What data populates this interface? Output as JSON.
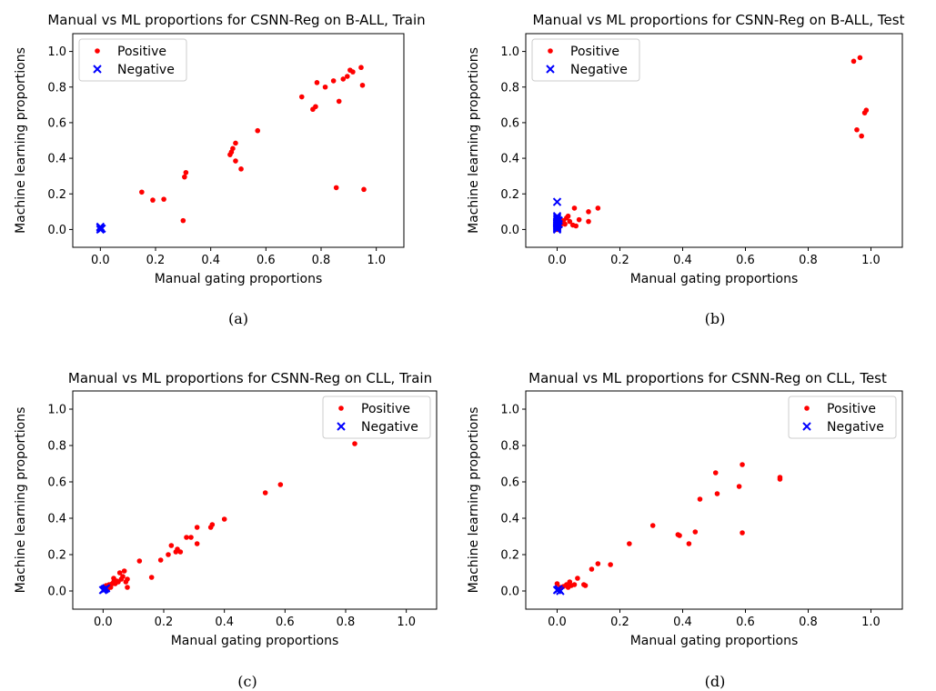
{
  "colors": {
    "positive": "#ff0000",
    "negative": "#0000ff"
  },
  "chart_data": [
    {
      "type": "scatter",
      "title": "Manual vs ML proportions for CSNN-Reg on B-ALL, Train",
      "xlabel": "Manual gating proportions",
      "ylabel": "Machine learning proportions",
      "caption": "(a)",
      "xlim": [
        -0.1,
        1.1
      ],
      "ylim": [
        -0.1,
        1.1
      ],
      "xticks": [
        0.0,
        0.2,
        0.4,
        0.6,
        0.8,
        1.0
      ],
      "yticks": [
        0.0,
        0.2,
        0.4,
        0.6,
        0.8,
        1.0
      ],
      "legend_position": "top-left",
      "series": [
        {
          "name": "Positive",
          "marker": "dot",
          "color": "#ff0000",
          "points": [
            [
              0.15,
              0.21
            ],
            [
              0.19,
              0.165
            ],
            [
              0.23,
              0.17
            ],
            [
              0.3,
              0.05
            ],
            [
              0.305,
              0.295
            ],
            [
              0.31,
              0.32
            ],
            [
              0.47,
              0.42
            ],
            [
              0.475,
              0.435
            ],
            [
              0.48,
              0.455
            ],
            [
              0.49,
              0.385
            ],
            [
              0.49,
              0.485
            ],
            [
              0.51,
              0.34
            ],
            [
              0.57,
              0.555
            ],
            [
              0.73,
              0.745
            ],
            [
              0.77,
              0.675
            ],
            [
              0.78,
              0.69
            ],
            [
              0.785,
              0.825
            ],
            [
              0.815,
              0.8
            ],
            [
              0.845,
              0.835
            ],
            [
              0.855,
              0.235
            ],
            [
              0.865,
              0.72
            ],
            [
              0.88,
              0.845
            ],
            [
              0.895,
              0.86
            ],
            [
              0.905,
              0.895
            ],
            [
              0.915,
              0.885
            ],
            [
              0.945,
              0.91
            ],
            [
              0.95,
              0.81
            ],
            [
              0.955,
              0.225
            ]
          ]
        },
        {
          "name": "Negative",
          "marker": "x",
          "color": "#0000ff",
          "points": [
            [
              0.0,
              0.0
            ],
            [
              0.0,
              0.01
            ],
            [
              0.005,
              0.005
            ],
            [
              0.0,
              0.015
            ]
          ]
        }
      ]
    },
    {
      "type": "scatter",
      "title": "Manual vs ML proportions for CSNN-Reg on B-ALL, Test",
      "xlabel": "Manual gating proportions",
      "ylabel": "Machine learning proportions",
      "caption": "(b)",
      "xlim": [
        -0.1,
        1.1
      ],
      "ylim": [
        -0.1,
        1.1
      ],
      "xticks": [
        0.0,
        0.2,
        0.4,
        0.6,
        0.8,
        1.0
      ],
      "yticks": [
        0.0,
        0.2,
        0.4,
        0.6,
        0.8,
        1.0
      ],
      "legend_position": "top-left",
      "series": [
        {
          "name": "Positive",
          "marker": "dot",
          "color": "#ff0000",
          "points": [
            [
              0.0,
              0.0
            ],
            [
              0.005,
              0.01
            ],
            [
              0.01,
              0.02
            ],
            [
              0.015,
              0.035
            ],
            [
              0.02,
              0.05
            ],
            [
              0.025,
              0.03
            ],
            [
              0.03,
              0.065
            ],
            [
              0.035,
              0.075
            ],
            [
              0.04,
              0.045
            ],
            [
              0.05,
              0.025
            ],
            [
              0.055,
              0.12
            ],
            [
              0.06,
              0.02
            ],
            [
              0.07,
              0.055
            ],
            [
              0.1,
              0.045
            ],
            [
              0.1,
              0.1
            ],
            [
              0.13,
              0.12
            ],
            [
              0.945,
              0.945
            ],
            [
              0.955,
              0.56
            ],
            [
              0.965,
              0.965
            ],
            [
              0.97,
              0.525
            ],
            [
              0.98,
              0.655
            ],
            [
              0.985,
              0.67
            ]
          ]
        },
        {
          "name": "Negative",
          "marker": "x",
          "color": "#0000ff",
          "points": [
            [
              0.0,
              0.155
            ],
            [
              0.0,
              0.075
            ],
            [
              0.0,
              0.065
            ],
            [
              0.0,
              0.055
            ],
            [
              0.0,
              0.045
            ],
            [
              0.0,
              0.04
            ],
            [
              0.0,
              0.035
            ],
            [
              0.0,
              0.03
            ],
            [
              0.0,
              0.025
            ],
            [
              0.0,
              0.02
            ],
            [
              0.0,
              0.015
            ],
            [
              0.0,
              0.01
            ],
            [
              0.0,
              0.005
            ],
            [
              0.0,
              0.0
            ],
            [
              0.005,
              0.05
            ],
            [
              0.005,
              0.03
            ]
          ]
        }
      ]
    },
    {
      "type": "scatter",
      "title": "Manual vs ML proportions for CSNN-Reg on CLL, Train",
      "xlabel": "Manual gating proportions",
      "ylabel": "Machine learning proportions",
      "caption": "(c)",
      "xlim": [
        -0.1,
        1.1
      ],
      "ylim": [
        -0.1,
        1.1
      ],
      "xticks": [
        0.0,
        0.2,
        0.4,
        0.6,
        0.8,
        1.0
      ],
      "yticks": [
        0.0,
        0.2,
        0.4,
        0.6,
        0.8,
        1.0
      ],
      "legend_position": "top-right",
      "series": [
        {
          "name": "Positive",
          "marker": "dot",
          "color": "#ff0000",
          "points": [
            [
              0.0,
              0.02
            ],
            [
              0.01,
              0.03
            ],
            [
              0.015,
              0.01
            ],
            [
              0.02,
              0.035
            ],
            [
              0.025,
              0.02
            ],
            [
              0.03,
              0.04
            ],
            [
              0.035,
              0.05
            ],
            [
              0.035,
              0.07
            ],
            [
              0.04,
              0.04
            ],
            [
              0.045,
              0.055
            ],
            [
              0.05,
              0.05
            ],
            [
              0.055,
              0.1
            ],
            [
              0.06,
              0.065
            ],
            [
              0.065,
              0.08
            ],
            [
              0.07,
              0.11
            ],
            [
              0.075,
              0.05
            ],
            [
              0.08,
              0.02
            ],
            [
              0.08,
              0.065
            ],
            [
              0.12,
              0.165
            ],
            [
              0.16,
              0.075
            ],
            [
              0.19,
              0.17
            ],
            [
              0.215,
              0.2
            ],
            [
              0.225,
              0.25
            ],
            [
              0.24,
              0.215
            ],
            [
              0.245,
              0.23
            ],
            [
              0.255,
              0.215
            ],
            [
              0.275,
              0.295
            ],
            [
              0.29,
              0.295
            ],
            [
              0.31,
              0.26
            ],
            [
              0.31,
              0.35
            ],
            [
              0.355,
              0.35
            ],
            [
              0.36,
              0.365
            ],
            [
              0.4,
              0.395
            ],
            [
              0.535,
              0.54
            ],
            [
              0.585,
              0.585
            ],
            [
              0.83,
              0.81
            ]
          ]
        },
        {
          "name": "Negative",
          "marker": "x",
          "color": "#0000ff",
          "points": [
            [
              0.0,
              0.005
            ],
            [
              0.005,
              0.01
            ],
            [
              0.01,
              0.015
            ]
          ]
        }
      ]
    },
    {
      "type": "scatter",
      "title": "Manual vs ML proportions for CSNN-Reg on CLL, Test",
      "xlabel": "Manual gating proportions",
      "ylabel": "Machine learning proportions",
      "caption": "(d)",
      "xlim": [
        -0.1,
        1.1
      ],
      "ylim": [
        -0.1,
        1.1
      ],
      "xticks": [
        0.0,
        0.2,
        0.4,
        0.6,
        0.8,
        1.0
      ],
      "yticks": [
        0.0,
        0.2,
        0.4,
        0.6,
        0.8,
        1.0
      ],
      "legend_position": "top-right",
      "series": [
        {
          "name": "Positive",
          "marker": "dot",
          "color": "#ff0000",
          "points": [
            [
              0.0,
              0.04
            ],
            [
              0.01,
              0.02
            ],
            [
              0.02,
              0.025
            ],
            [
              0.03,
              0.035
            ],
            [
              0.035,
              0.02
            ],
            [
              0.04,
              0.05
            ],
            [
              0.045,
              0.03
            ],
            [
              0.055,
              0.035
            ],
            [
              0.065,
              0.07
            ],
            [
              0.085,
              0.035
            ],
            [
              0.09,
              0.03
            ],
            [
              0.11,
              0.12
            ],
            [
              0.13,
              0.15
            ],
            [
              0.17,
              0.145
            ],
            [
              0.23,
              0.26
            ],
            [
              0.305,
              0.36
            ],
            [
              0.385,
              0.31
            ],
            [
              0.39,
              0.305
            ],
            [
              0.42,
              0.26
            ],
            [
              0.44,
              0.325
            ],
            [
              0.455,
              0.505
            ],
            [
              0.505,
              0.65
            ],
            [
              0.51,
              0.535
            ],
            [
              0.58,
              0.575
            ],
            [
              0.59,
              0.695
            ],
            [
              0.59,
              0.32
            ],
            [
              0.71,
              0.625
            ],
            [
              0.71,
              0.615
            ]
          ]
        },
        {
          "name": "Negative",
          "marker": "x",
          "color": "#0000ff",
          "points": [
            [
              0.0,
              0.005
            ],
            [
              0.005,
              0.01
            ],
            [
              0.01,
              0.0
            ]
          ]
        }
      ]
    }
  ]
}
